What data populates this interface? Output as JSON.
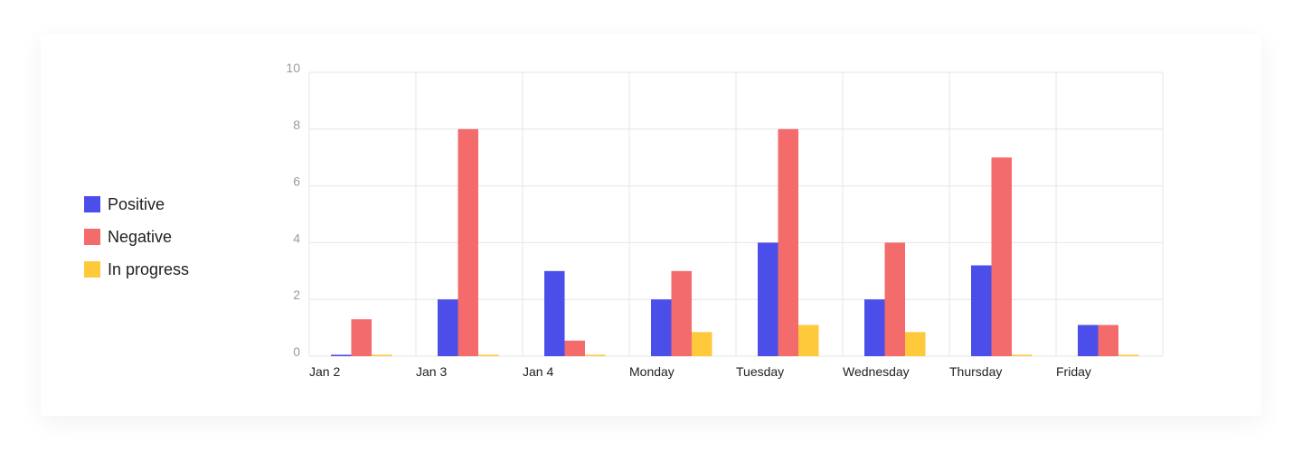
{
  "chart_data": {
    "type": "bar",
    "categories": [
      "Jan 2",
      "Jan 3",
      "Jan 4",
      "Monday",
      "Tuesday",
      "Wednesday",
      "Thursday",
      "Friday"
    ],
    "series": [
      {
        "name": "Positive",
        "color": "#4b4ee8",
        "values": [
          0.05,
          2,
          3,
          2,
          4,
          2,
          3.2,
          1.1
        ]
      },
      {
        "name": "Negative",
        "color": "#f36b6b",
        "values": [
          1.3,
          8,
          0.55,
          3,
          8,
          4,
          7,
          1.1
        ]
      },
      {
        "name": "In progress",
        "color": "#ffc93c",
        "values": [
          0.05,
          0.05,
          0.05,
          0.85,
          1.1,
          0.85,
          0.05,
          0.05
        ]
      }
    ],
    "ylim": [
      0,
      10
    ],
    "yticks": [
      0,
      2,
      4,
      6,
      8,
      10
    ],
    "grid": true,
    "legend_position": "left"
  }
}
